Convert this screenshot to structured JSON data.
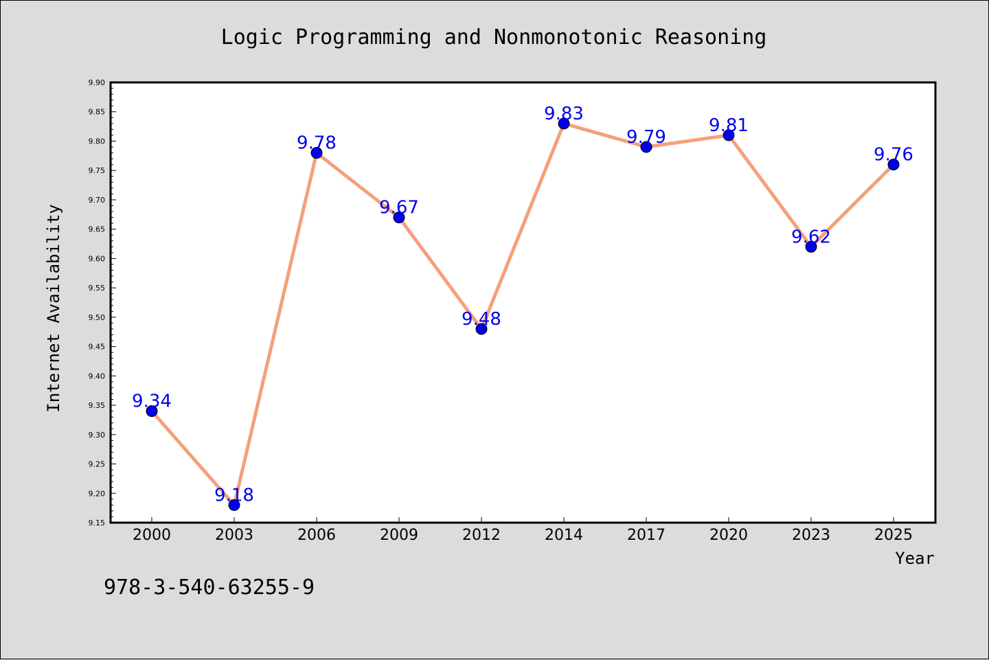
{
  "chart_data": {
    "type": "line",
    "title": "Logic Programming and Nonmonotonic Reasoning",
    "xlabel": "Year",
    "ylabel": "Internet Availability",
    "categories": [
      "2000",
      "2003",
      "2006",
      "2009",
      "2012",
      "2014",
      "2017",
      "2020",
      "2023",
      "2025"
    ],
    "series": [
      {
        "values": [
          9.34,
          9.18,
          9.78,
          9.67,
          9.48,
          9.83,
          9.79,
          9.81,
          9.62,
          9.76
        ],
        "data_labels": [
          "9.34",
          "9.18",
          "9.78",
          "9.67",
          "9.48",
          "9.83",
          "9.79",
          "9.81",
          "9.62",
          "9.76"
        ]
      }
    ],
    "ylim": [
      9.15,
      9.9
    ],
    "yticks": [
      "9.15",
      "9.20",
      "9.25",
      "9.30",
      "9.35",
      "9.40",
      "9.45",
      "9.50",
      "9.55",
      "9.60",
      "9.65",
      "9.70",
      "9.75",
      "9.80",
      "9.85",
      "9.90"
    ],
    "grid": false,
    "legend": "none",
    "colors": {
      "line": "#f4a07a",
      "marker_fill": "#0000ee",
      "marker_edge": "#000000",
      "data_label": "#0000ee",
      "background": "#dcdcdc",
      "plot_background": "#ffffff"
    }
  },
  "footnote": "978-3-540-63255-9"
}
